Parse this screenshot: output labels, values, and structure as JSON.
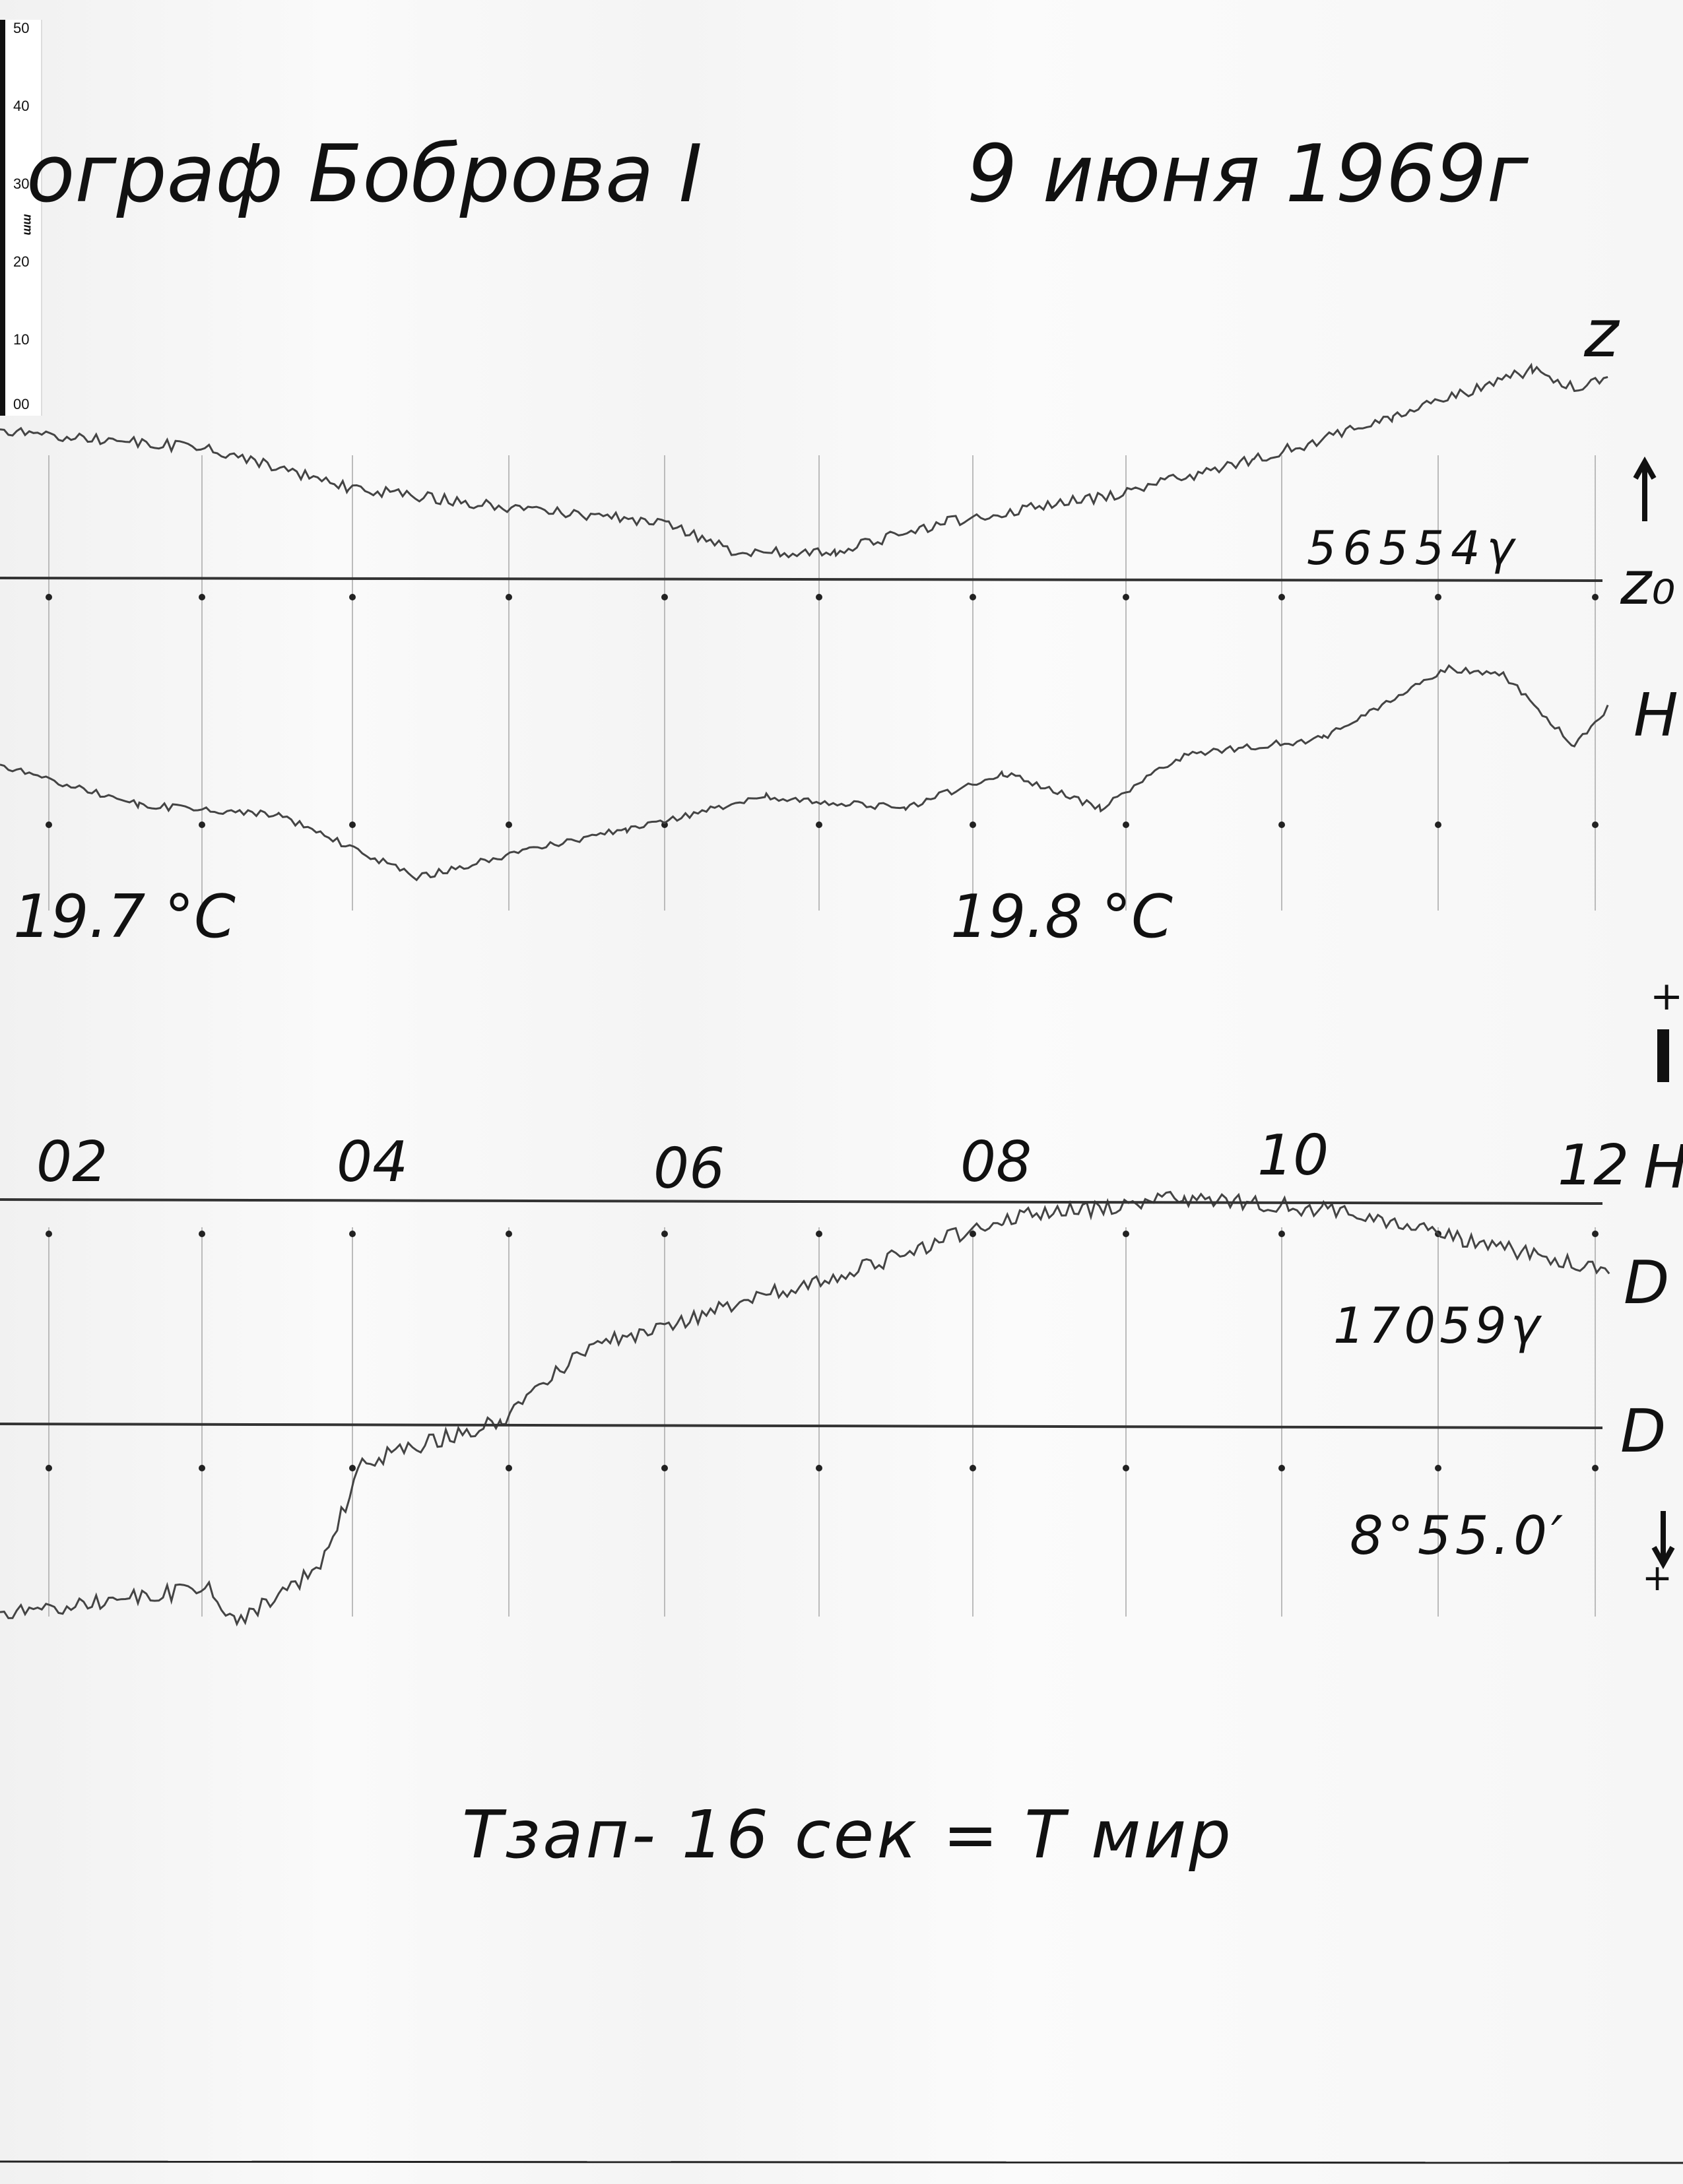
{
  "ruler": {
    "ticks": [
      "50",
      "40",
      "30",
      "20",
      "10",
      "00"
    ],
    "unit": "mm"
  },
  "header": {
    "instrument": "ограф Боброва I",
    "date": "9 июня 1969г"
  },
  "traces": {
    "z": {
      "label": "z",
      "baseline_label": "z₀",
      "baseline_value": "56554γ"
    },
    "h": {
      "label": "H",
      "baseline_label": "H",
      "baseline_value": "17059γ"
    },
    "d": {
      "label": "D",
      "baseline_label": "D",
      "baseline_value": "8°55.0′"
    }
  },
  "temperatures": [
    "19.7 °C",
    "19.8 °C"
  ],
  "hour_labels": [
    "02",
    "04",
    "06",
    "08",
    "10",
    "12"
  ],
  "footer": {
    "note": "Тзап- 16 сек = Т мир"
  },
  "margin_marks": {
    "plus_bottom": "+",
    "plus_top": "+"
  }
}
